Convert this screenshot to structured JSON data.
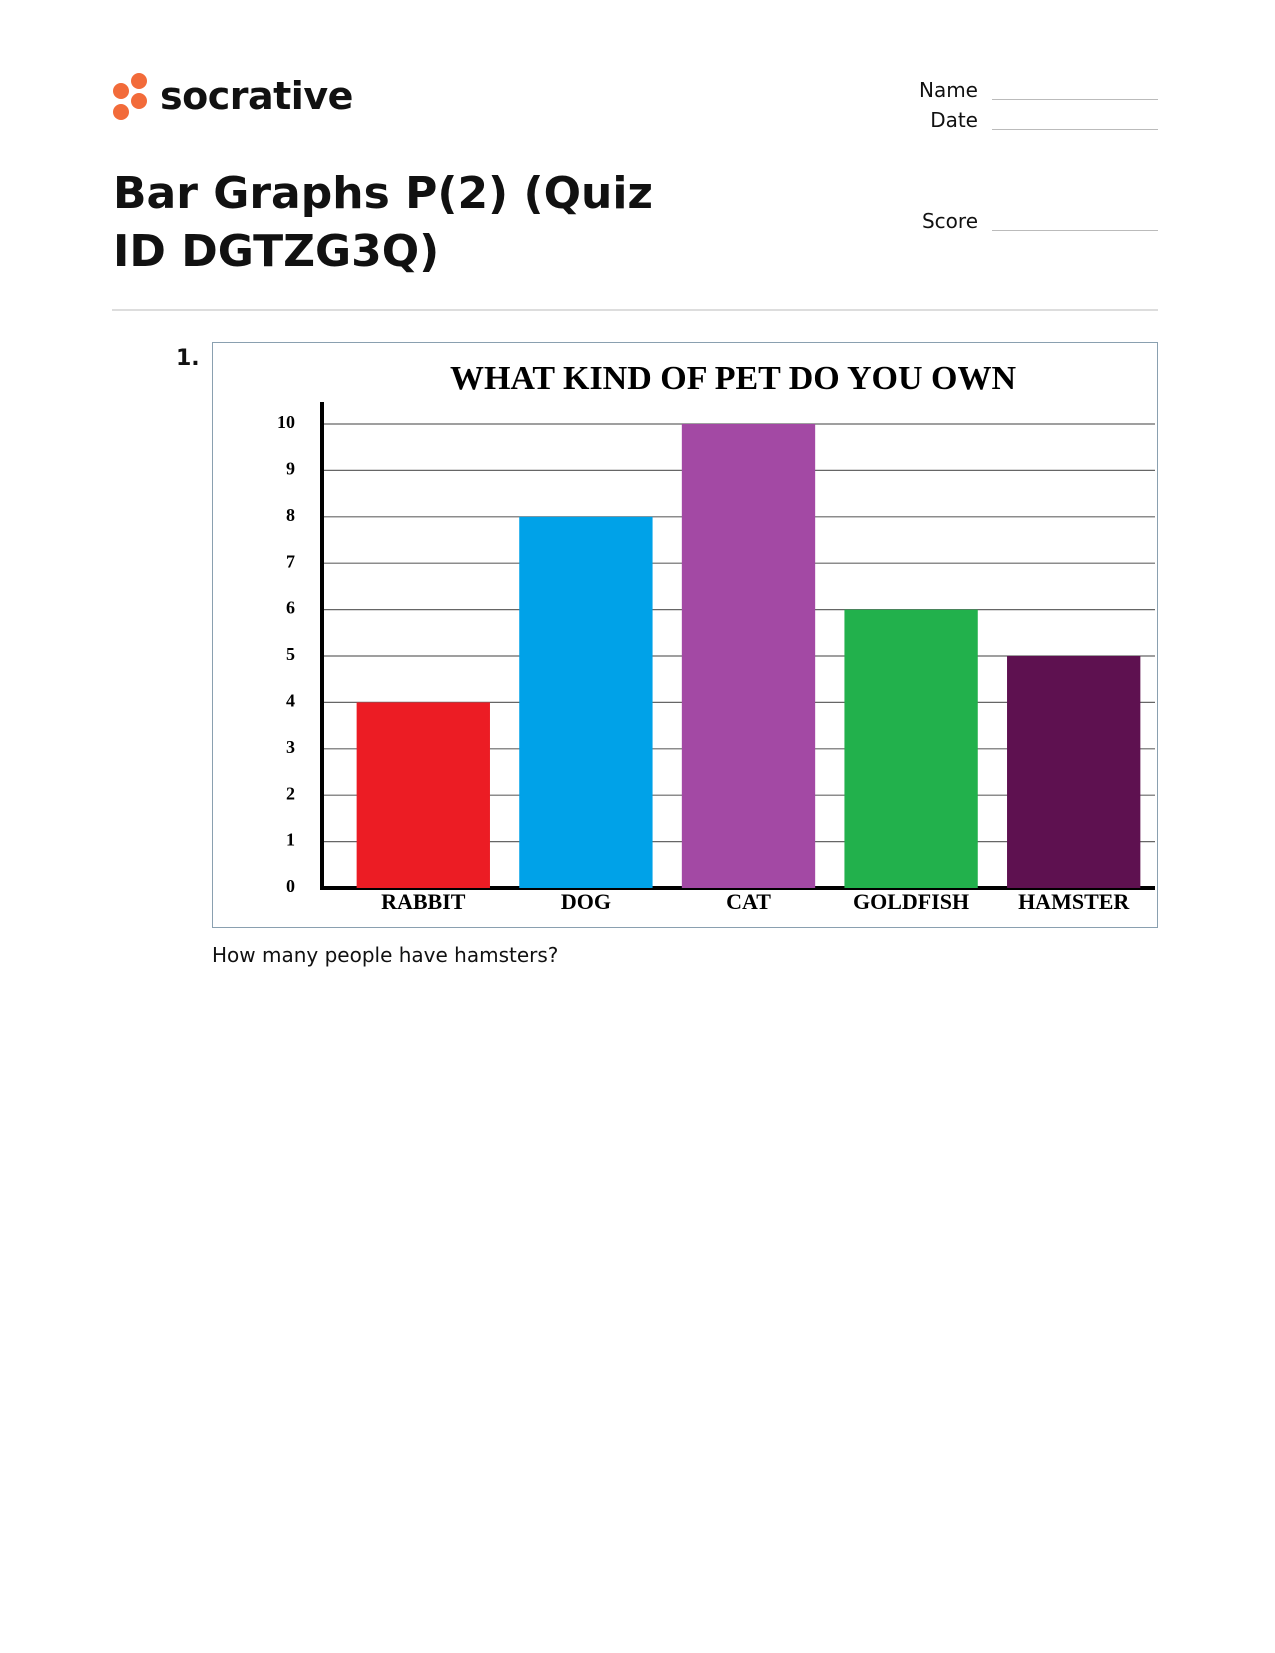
{
  "header": {
    "brand": "socrative",
    "title": "Bar Graphs P(2) (Quiz ID DGTZG3Q)",
    "fields": [
      "Name",
      "Date",
      "Score"
    ]
  },
  "question": {
    "number": "1.",
    "text": "How many people have hamsters?"
  },
  "chart_data": {
    "type": "bar",
    "title": "WHAT KIND OF PET DO YOU OWN",
    "categories": [
      "RABBIT",
      "DOG",
      "CAT",
      "GOLDFISH",
      "HAMSTER"
    ],
    "values": [
      4,
      8,
      10,
      6,
      5
    ],
    "colors": [
      "#ec1c24",
      "#00a2e8",
      "#a349a4",
      "#22b14c",
      "#5e1150"
    ],
    "ylim": [
      0,
      10
    ],
    "yticks": [
      0,
      1,
      2,
      3,
      4,
      5,
      6,
      7,
      8,
      9,
      10
    ],
    "grid": true
  }
}
